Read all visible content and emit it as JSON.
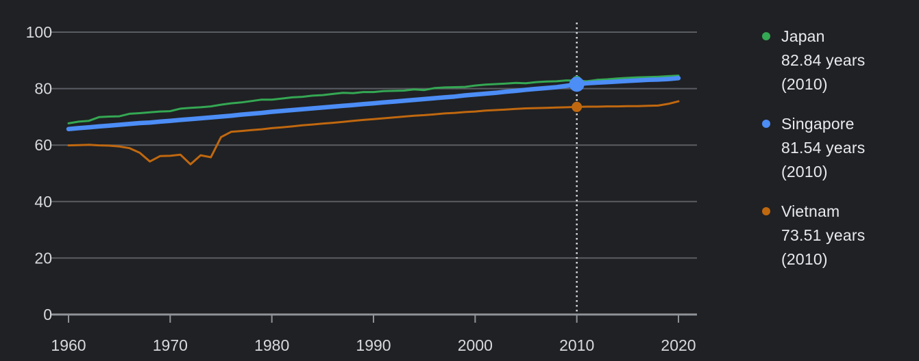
{
  "chart_data": {
    "type": "line",
    "title": "",
    "xlabel": "",
    "ylabel": "",
    "unit": "years",
    "x": [
      1960,
      1961,
      1962,
      1963,
      1964,
      1965,
      1966,
      1967,
      1968,
      1969,
      1970,
      1971,
      1972,
      1973,
      1974,
      1975,
      1976,
      1977,
      1978,
      1979,
      1980,
      1981,
      1982,
      1983,
      1984,
      1985,
      1986,
      1987,
      1988,
      1989,
      1990,
      1991,
      1992,
      1993,
      1994,
      1995,
      1996,
      1997,
      1998,
      1999,
      2000,
      2001,
      2002,
      2003,
      2004,
      2005,
      2006,
      2007,
      2008,
      2009,
      2010,
      2011,
      2012,
      2013,
      2014,
      2015,
      2016,
      2017,
      2018,
      2019,
      2020
    ],
    "series": [
      {
        "name": "Japan",
        "color": "#34a853",
        "line_width": 3,
        "values": [
          67.7,
          68.3,
          68.6,
          69.9,
          70.1,
          70.2,
          71.1,
          71.3,
          71.6,
          71.9,
          72.0,
          72.9,
          73.2,
          73.4,
          73.7,
          74.3,
          74.8,
          75.1,
          75.6,
          76.1,
          76.1,
          76.5,
          76.9,
          77.1,
          77.5,
          77.7,
          78.1,
          78.5,
          78.4,
          78.8,
          78.8,
          79.1,
          79.2,
          79.3,
          79.7,
          79.5,
          80.2,
          80.4,
          80.5,
          80.6,
          81.1,
          81.4,
          81.6,
          81.8,
          82.0,
          81.9,
          82.3,
          82.5,
          82.6,
          82.9,
          82.84,
          82.6,
          83.1,
          83.3,
          83.6,
          83.8,
          84.0,
          84.1,
          84.2,
          84.4,
          84.6
        ]
      },
      {
        "name": "Singapore",
        "color": "#4c8df6",
        "line_width": 6.5,
        "emphasized": true,
        "values": [
          65.7,
          66.0,
          66.3,
          66.6,
          66.9,
          67.2,
          67.5,
          67.8,
          68.0,
          68.3,
          68.6,
          68.9,
          69.2,
          69.5,
          69.8,
          70.1,
          70.4,
          70.8,
          71.1,
          71.4,
          71.8,
          72.1,
          72.4,
          72.7,
          73.0,
          73.3,
          73.6,
          73.9,
          74.2,
          74.5,
          74.8,
          75.1,
          75.4,
          75.7,
          76.0,
          76.3,
          76.6,
          76.9,
          77.2,
          77.6,
          77.9,
          78.2,
          78.5,
          78.9,
          79.2,
          79.6,
          79.9,
          80.2,
          80.5,
          81.0,
          81.54,
          81.9,
          82.1,
          82.3,
          82.5,
          82.7,
          82.9,
          83.1,
          83.2,
          83.4,
          83.7
        ]
      },
      {
        "name": "Vietnam",
        "color": "#c0680f",
        "line_width": 3,
        "values": [
          59.9,
          60.0,
          60.1,
          59.9,
          59.8,
          59.5,
          58.9,
          57.3,
          54.2,
          56.1,
          56.2,
          56.6,
          53.2,
          56.4,
          55.7,
          62.8,
          64.7,
          65.0,
          65.3,
          65.6,
          66.0,
          66.3,
          66.6,
          67.0,
          67.3,
          67.6,
          67.9,
          68.2,
          68.6,
          68.9,
          69.2,
          69.5,
          69.8,
          70.1,
          70.4,
          70.6,
          70.9,
          71.2,
          71.4,
          71.7,
          71.9,
          72.2,
          72.4,
          72.6,
          72.8,
          73.0,
          73.1,
          73.2,
          73.3,
          73.4,
          73.51,
          73.6,
          73.6,
          73.7,
          73.7,
          73.8,
          73.8,
          73.9,
          74.0,
          74.6,
          75.5
        ]
      }
    ],
    "ylim": [
      0,
      100
    ],
    "yticks": [
      0,
      20,
      40,
      60,
      80,
      100
    ],
    "xticks": [
      1960,
      1970,
      1980,
      1990,
      2000,
      2010,
      2020
    ],
    "grid": "horizontal",
    "legend_position": "right",
    "highlight": {
      "year": 2010,
      "points": [
        {
          "series": "Japan",
          "value": 82.84,
          "radius": 7
        },
        {
          "series": "Singapore",
          "value": 81.54,
          "radius": 11
        },
        {
          "series": "Vietnam",
          "value": 73.51,
          "radius": 7.5
        }
      ]
    }
  },
  "legend": {
    "entries": [
      {
        "name": "Japan",
        "value_label": "82.84 years",
        "year_label": "(2010)",
        "color": "#34a853"
      },
      {
        "name": "Singapore",
        "value_label": "81.54 years",
        "year_label": "(2010)",
        "color": "#4c8df6"
      },
      {
        "name": "Vietnam",
        "value_label": "73.51 years",
        "year_label": "(2010)",
        "color": "#c0680f"
      }
    ]
  },
  "colors": {
    "background": "#202124",
    "gridline": "#5a5e63",
    "axis": "#8f9499",
    "tick_label": "#d7dadd",
    "legend_text": "#e8eaed",
    "highlight_line": "#d8dadd"
  }
}
